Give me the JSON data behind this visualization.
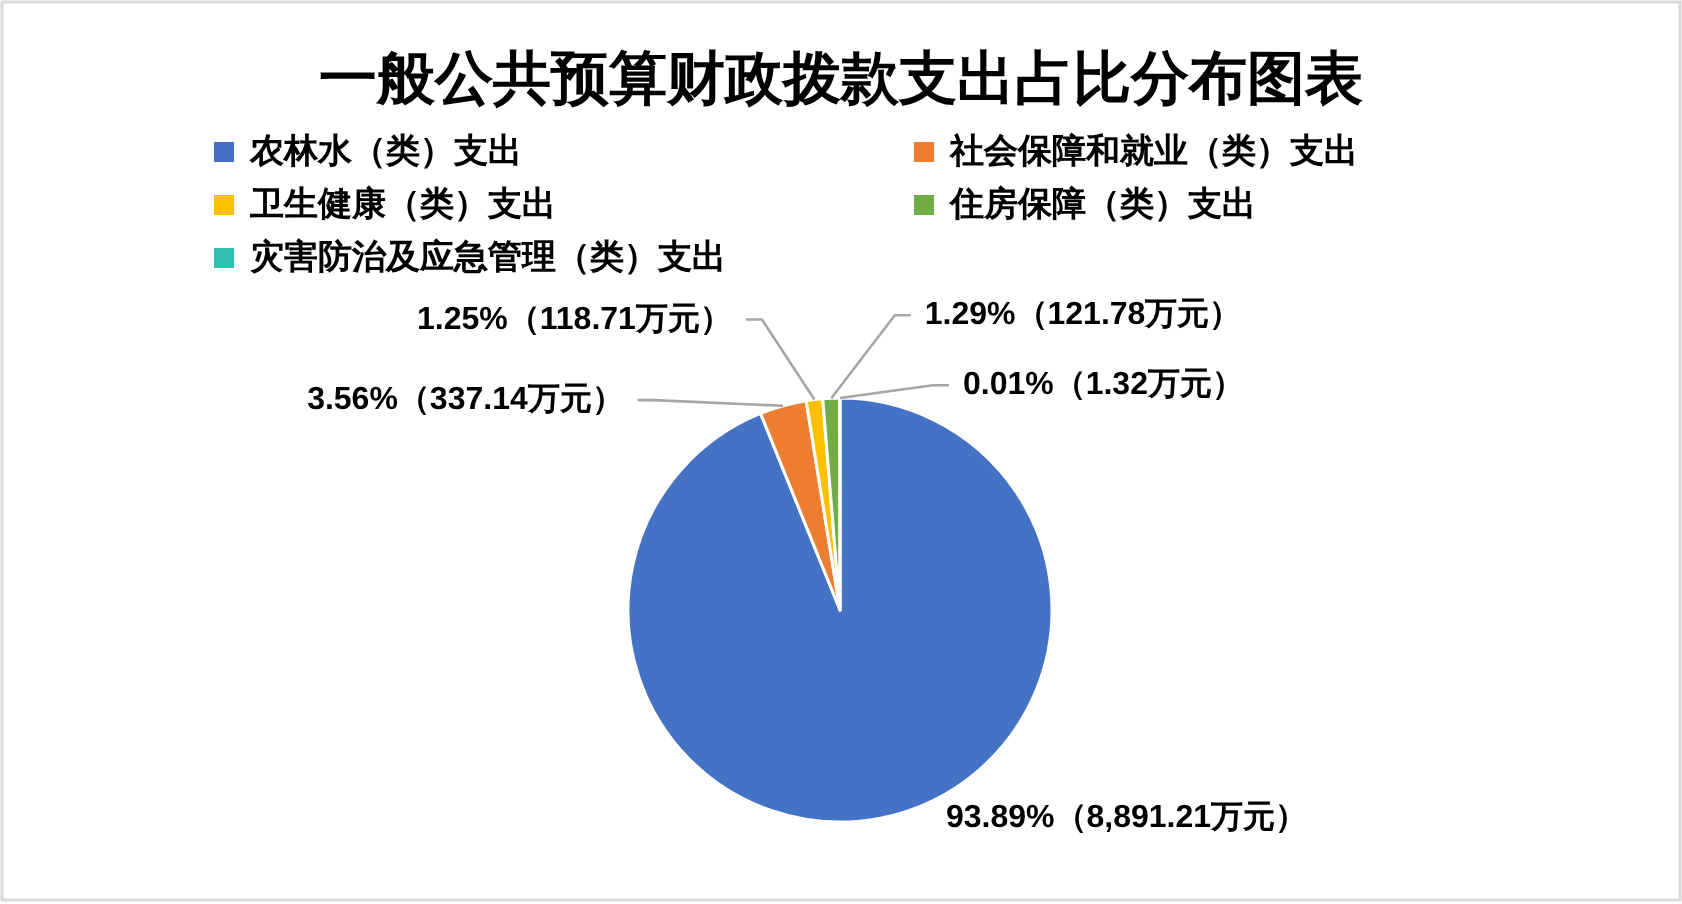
{
  "chart_data": {
    "type": "pie",
    "title": "一般公共预算财政拨款支出占比分布图表",
    "categories": [
      "农林水（类）支出",
      "社会保障和就业（类）支出",
      "卫生健康（类）支出",
      "住房保障（类）支出",
      "灾害防治及应急管理（类）支出"
    ],
    "values": [
      8891.21,
      337.14,
      118.71,
      121.78,
      1.32
    ],
    "value_labels": [
      "93.89%（8,891.21万元）",
      "3.56%（337.14万元）",
      "1.25%（118.71万元）",
      "1.29%（121.78万元）",
      "0.01%（1.32万元）"
    ],
    "colors": [
      "#4472c4",
      "#ed7d31",
      "#ffc000",
      "#70ad47",
      "#2fbfae"
    ],
    "legend": "top"
  }
}
